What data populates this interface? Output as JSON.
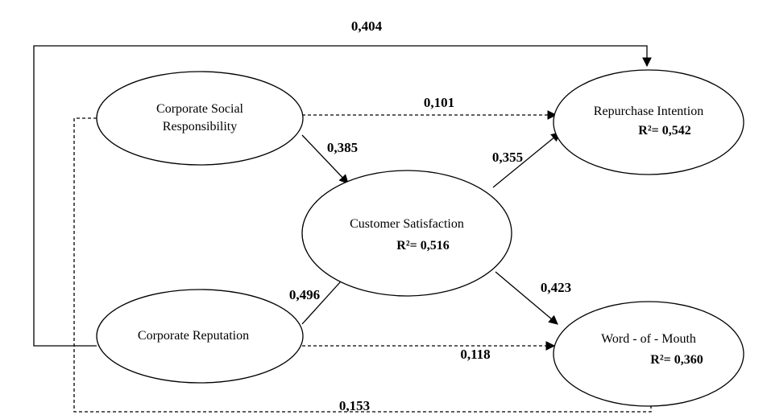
{
  "nodes": [
    {
      "label": [
        "Corporate Social",
        "Responsibility"
      ]
    },
    {
      "label": [
        "Repurchase Intention"
      ],
      "r2": "R²= 0,542"
    },
    {
      "label": [
        "Customer Satisfaction"
      ],
      "r2": "R²= 0,516"
    },
    {
      "label": [
        "Corporate Reputation"
      ]
    },
    {
      "label": [
        "Word - of - Mouth"
      ],
      "r2": "R²= 0,360"
    }
  ],
  "edges": [
    {
      "label": "0,404"
    },
    {
      "label": "0,101"
    },
    {
      "label": "0,385"
    },
    {
      "label": "0,355"
    },
    {
      "label": "0,496"
    },
    {
      "label": "0,423"
    },
    {
      "label": "0,118"
    },
    {
      "label": "0,153"
    }
  ]
}
